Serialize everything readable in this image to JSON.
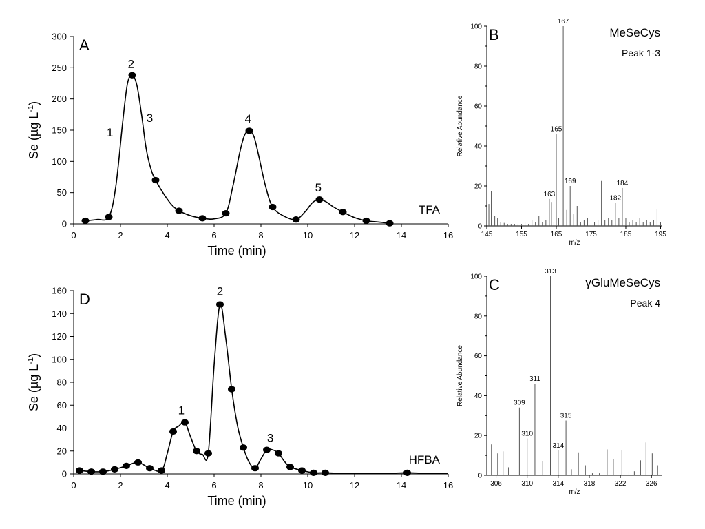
{
  "chart_data": [
    {
      "id": "A",
      "type": "line",
      "panel_label": "A",
      "xlabel": "Time (min)",
      "ylabel_base": "Se (µg L",
      "ylabel_sup": "-1",
      "ylabel_tail": ")",
      "xlim": [
        0,
        16
      ],
      "ylim": [
        0,
        300
      ],
      "xticks": [
        0,
        2,
        4,
        6,
        8,
        10,
        12,
        14,
        16
      ],
      "yticks": [
        0,
        50,
        100,
        150,
        200,
        250,
        300
      ],
      "corner_label": "TFA",
      "points": [
        [
          0.5,
          5
        ],
        [
          1.5,
          11
        ],
        [
          2.5,
          238
        ],
        [
          3.5,
          70
        ],
        [
          4.5,
          21
        ],
        [
          5.5,
          9
        ],
        [
          6.5,
          17
        ],
        [
          7.5,
          149
        ],
        [
          8.5,
          27
        ],
        [
          9.5,
          7
        ],
        [
          10.5,
          39
        ],
        [
          11.5,
          19
        ],
        [
          12.5,
          5
        ],
        [
          13.5,
          1
        ]
      ],
      "curve": [
        [
          0.5,
          5
        ],
        [
          1.0,
          7
        ],
        [
          1.5,
          11
        ],
        [
          1.8,
          60
        ],
        [
          2.1,
          165
        ],
        [
          2.3,
          225
        ],
        [
          2.5,
          238
        ],
        [
          2.7,
          222
        ],
        [
          2.9,
          175
        ],
        [
          3.1,
          120
        ],
        [
          3.3,
          88
        ],
        [
          3.5,
          70
        ],
        [
          3.9,
          45
        ],
        [
          4.2,
          30
        ],
        [
          4.5,
          21
        ],
        [
          5.0,
          13
        ],
        [
          5.5,
          9
        ],
        [
          6.0,
          8
        ],
        [
          6.5,
          17
        ],
        [
          6.8,
          60
        ],
        [
          7.1,
          115
        ],
        [
          7.3,
          142
        ],
        [
          7.5,
          149
        ],
        [
          7.7,
          140
        ],
        [
          7.9,
          110
        ],
        [
          8.2,
          60
        ],
        [
          8.5,
          27
        ],
        [
          9.0,
          12
        ],
        [
          9.5,
          7
        ],
        [
          9.9,
          20
        ],
        [
          10.2,
          34
        ],
        [
          10.5,
          39
        ],
        [
          10.8,
          35
        ],
        [
          11.1,
          27
        ],
        [
          11.5,
          19
        ],
        [
          12.0,
          10
        ],
        [
          12.5,
          5
        ],
        [
          13.0,
          3
        ],
        [
          13.5,
          1
        ]
      ],
      "annotations": [
        {
          "text": "1",
          "x": 1.55,
          "y": 140
        },
        {
          "text": "2",
          "x": 2.45,
          "y": 250
        },
        {
          "text": "3",
          "x": 3.25,
          "y": 163
        },
        {
          "text": "4",
          "x": 7.45,
          "y": 162
        },
        {
          "text": "5",
          "x": 10.45,
          "y": 52
        }
      ]
    },
    {
      "id": "D",
      "type": "line",
      "panel_label": "D",
      "xlabel": "Time (min)",
      "ylabel_base": "Se (µg L",
      "ylabel_sup": "-1",
      "ylabel_tail": ")",
      "xlim": [
        0,
        16
      ],
      "ylim": [
        0,
        160
      ],
      "xticks": [
        0,
        2,
        4,
        6,
        8,
        10,
        12,
        14,
        16
      ],
      "yticks": [
        0,
        20,
        40,
        60,
        80,
        100,
        120,
        140,
        160
      ],
      "corner_label": "HFBA",
      "points": [
        [
          0.25,
          3
        ],
        [
          0.75,
          2
        ],
        [
          1.25,
          2
        ],
        [
          1.75,
          4
        ],
        [
          2.25,
          7
        ],
        [
          2.75,
          10
        ],
        [
          3.25,
          5
        ],
        [
          3.75,
          3
        ],
        [
          4.25,
          37
        ],
        [
          4.75,
          45
        ],
        [
          5.25,
          20
        ],
        [
          5.75,
          18
        ],
        [
          6.25,
          148
        ],
        [
          6.75,
          74
        ],
        [
          7.25,
          23
        ],
        [
          7.75,
          5
        ],
        [
          8.25,
          21
        ],
        [
          8.75,
          18
        ],
        [
          9.25,
          6
        ],
        [
          9.75,
          3
        ],
        [
          10.25,
          1
        ],
        [
          10.75,
          1
        ],
        [
          14.25,
          1
        ]
      ],
      "curve": [
        [
          0.25,
          3
        ],
        [
          0.75,
          2
        ],
        [
          1.25,
          2
        ],
        [
          1.75,
          4
        ],
        [
          2.25,
          7
        ],
        [
          2.75,
          10
        ],
        [
          3.25,
          5
        ],
        [
          3.75,
          3
        ],
        [
          4.0,
          18
        ],
        [
          4.25,
          37
        ],
        [
          4.5,
          42
        ],
        [
          4.75,
          45
        ],
        [
          5.0,
          32
        ],
        [
          5.25,
          20
        ],
        [
          5.5,
          17
        ],
        [
          5.75,
          18
        ],
        [
          6.0,
          95
        ],
        [
          6.25,
          148
        ],
        [
          6.5,
          118
        ],
        [
          6.75,
          74
        ],
        [
          7.0,
          42
        ],
        [
          7.25,
          23
        ],
        [
          7.5,
          10
        ],
        [
          7.75,
          5
        ],
        [
          8.0,
          13
        ],
        [
          8.25,
          21
        ],
        [
          8.5,
          21
        ],
        [
          8.75,
          18
        ],
        [
          9.0,
          11
        ],
        [
          9.25,
          6
        ],
        [
          9.75,
          3
        ],
        [
          10.25,
          1
        ],
        [
          10.75,
          1
        ],
        [
          11.5,
          0.5
        ],
        [
          12.5,
          0.5
        ],
        [
          13.5,
          0.6
        ],
        [
          14.25,
          1
        ],
        [
          15.0,
          0.6
        ],
        [
          16.0,
          0.5
        ]
      ],
      "annotations": [
        {
          "text": "1",
          "x": 4.6,
          "y": 52
        },
        {
          "text": "2",
          "x": 6.25,
          "y": 156
        },
        {
          "text": "3",
          "x": 8.4,
          "y": 28
        }
      ]
    },
    {
      "id": "B",
      "type": "bar",
      "panel_label": "B",
      "title": "MeSeCys",
      "subtitle": "Peak 1-3",
      "xlabel": "m/z",
      "ylabel": "Relative Abundance",
      "xlim": [
        145,
        195.5
      ],
      "ylim": [
        0,
        100
      ],
      "xticks": [
        145,
        155,
        165,
        175,
        185,
        195
      ],
      "xtick_labels": [
        "145",
        "155",
        "165",
        "175",
        "185",
        "195"
      ],
      "yticks": [
        0,
        20,
        40,
        60,
        80,
        100
      ],
      "peaks": [
        [
          145.6,
          11
        ],
        [
          146.3,
          17.5
        ],
        [
          147.3,
          5
        ],
        [
          148.1,
          4
        ],
        [
          149.0,
          2
        ],
        [
          150.0,
          1.5
        ],
        [
          151.0,
          1
        ],
        [
          152.0,
          1
        ],
        [
          153.0,
          1
        ],
        [
          154.0,
          1
        ],
        [
          155.0,
          1
        ],
        [
          156.0,
          2
        ],
        [
          157.0,
          1
        ],
        [
          158.0,
          3
        ],
        [
          159.0,
          2
        ],
        [
          160.0,
          5
        ],
        [
          161.0,
          2
        ],
        [
          162.0,
          3
        ],
        [
          163.0,
          13.5
        ],
        [
          163.6,
          12
        ],
        [
          164.3,
          2
        ],
        [
          165.0,
          46
        ],
        [
          165.7,
          4
        ],
        [
          167.0,
          100
        ],
        [
          168.0,
          8
        ],
        [
          169.0,
          20
        ],
        [
          170.0,
          6
        ],
        [
          171.0,
          10
        ],
        [
          172.0,
          2
        ],
        [
          173.0,
          3
        ],
        [
          174.0,
          4
        ],
        [
          175.0,
          1
        ],
        [
          176.0,
          2
        ],
        [
          177.0,
          3
        ],
        [
          178.0,
          22.5
        ],
        [
          179.0,
          3
        ],
        [
          180.0,
          4
        ],
        [
          181.0,
          3
        ],
        [
          182.0,
          11.5
        ],
        [
          183.0,
          4
        ],
        [
          184.0,
          19
        ],
        [
          185.0,
          4
        ],
        [
          186.0,
          2
        ],
        [
          187.0,
          3
        ],
        [
          188.0,
          2
        ],
        [
          189.0,
          4
        ],
        [
          190.0,
          2
        ],
        [
          191.0,
          3
        ],
        [
          192.0,
          2
        ],
        [
          193.0,
          3
        ],
        [
          194.0,
          8.5
        ],
        [
          195.0,
          2
        ]
      ],
      "peak_labels": [
        {
          "text": "167",
          "x": 167,
          "y": 100
        },
        {
          "text": "165",
          "x": 165,
          "y": 46
        },
        {
          "text": "163",
          "x": 163,
          "y": 13.5
        },
        {
          "text": "169",
          "x": 169,
          "y": 20
        },
        {
          "text": "184",
          "x": 184,
          "y": 19
        },
        {
          "text": "182",
          "x": 182,
          "y": 11.5
        }
      ]
    },
    {
      "id": "C",
      "type": "bar",
      "panel_label": "C",
      "title": "γGluMeSeCys",
      "subtitle": "Peak 4",
      "xlabel": "m/z",
      "ylabel": "Relative Abundance",
      "xlim": [
        304.8,
        327.4
      ],
      "ylim": [
        0,
        100
      ],
      "xticks": [
        306,
        310,
        314,
        318,
        322,
        326
      ],
      "xtick_labels": [
        "306",
        "310",
        "314",
        "318",
        "322",
        "326"
      ],
      "yticks": [
        0,
        20,
        40,
        60,
        80,
        100
      ],
      "peaks": [
        [
          305.4,
          15.5
        ],
        [
          306.2,
          11
        ],
        [
          306.9,
          12
        ],
        [
          307.6,
          4
        ],
        [
          308.3,
          11
        ],
        [
          309.0,
          34
        ],
        [
          310.0,
          18.5
        ],
        [
          311.0,
          46
        ],
        [
          312.0,
          7
        ],
        [
          313.0,
          100
        ],
        [
          314.0,
          12.5
        ],
        [
          315.0,
          27.5
        ],
        [
          315.7,
          3
        ],
        [
          316.6,
          11.5
        ],
        [
          317.5,
          5
        ],
        [
          318.4,
          1
        ],
        [
          319.3,
          1
        ],
        [
          320.3,
          13
        ],
        [
          321.1,
          8
        ],
        [
          322.2,
          12.5
        ],
        [
          323.1,
          2
        ],
        [
          323.8,
          2
        ],
        [
          324.6,
          7.5
        ],
        [
          325.3,
          16.5
        ],
        [
          326.1,
          11
        ],
        [
          326.8,
          5
        ]
      ],
      "peak_labels": [
        {
          "text": "313",
          "x": 313,
          "y": 100
        },
        {
          "text": "311",
          "x": 311,
          "y": 46
        },
        {
          "text": "309",
          "x": 309,
          "y": 34
        },
        {
          "text": "310",
          "x": 310,
          "y": 18.5
        },
        {
          "text": "315",
          "x": 315,
          "y": 27.5
        },
        {
          "text": "314",
          "x": 314,
          "y": 12.5
        }
      ]
    }
  ]
}
